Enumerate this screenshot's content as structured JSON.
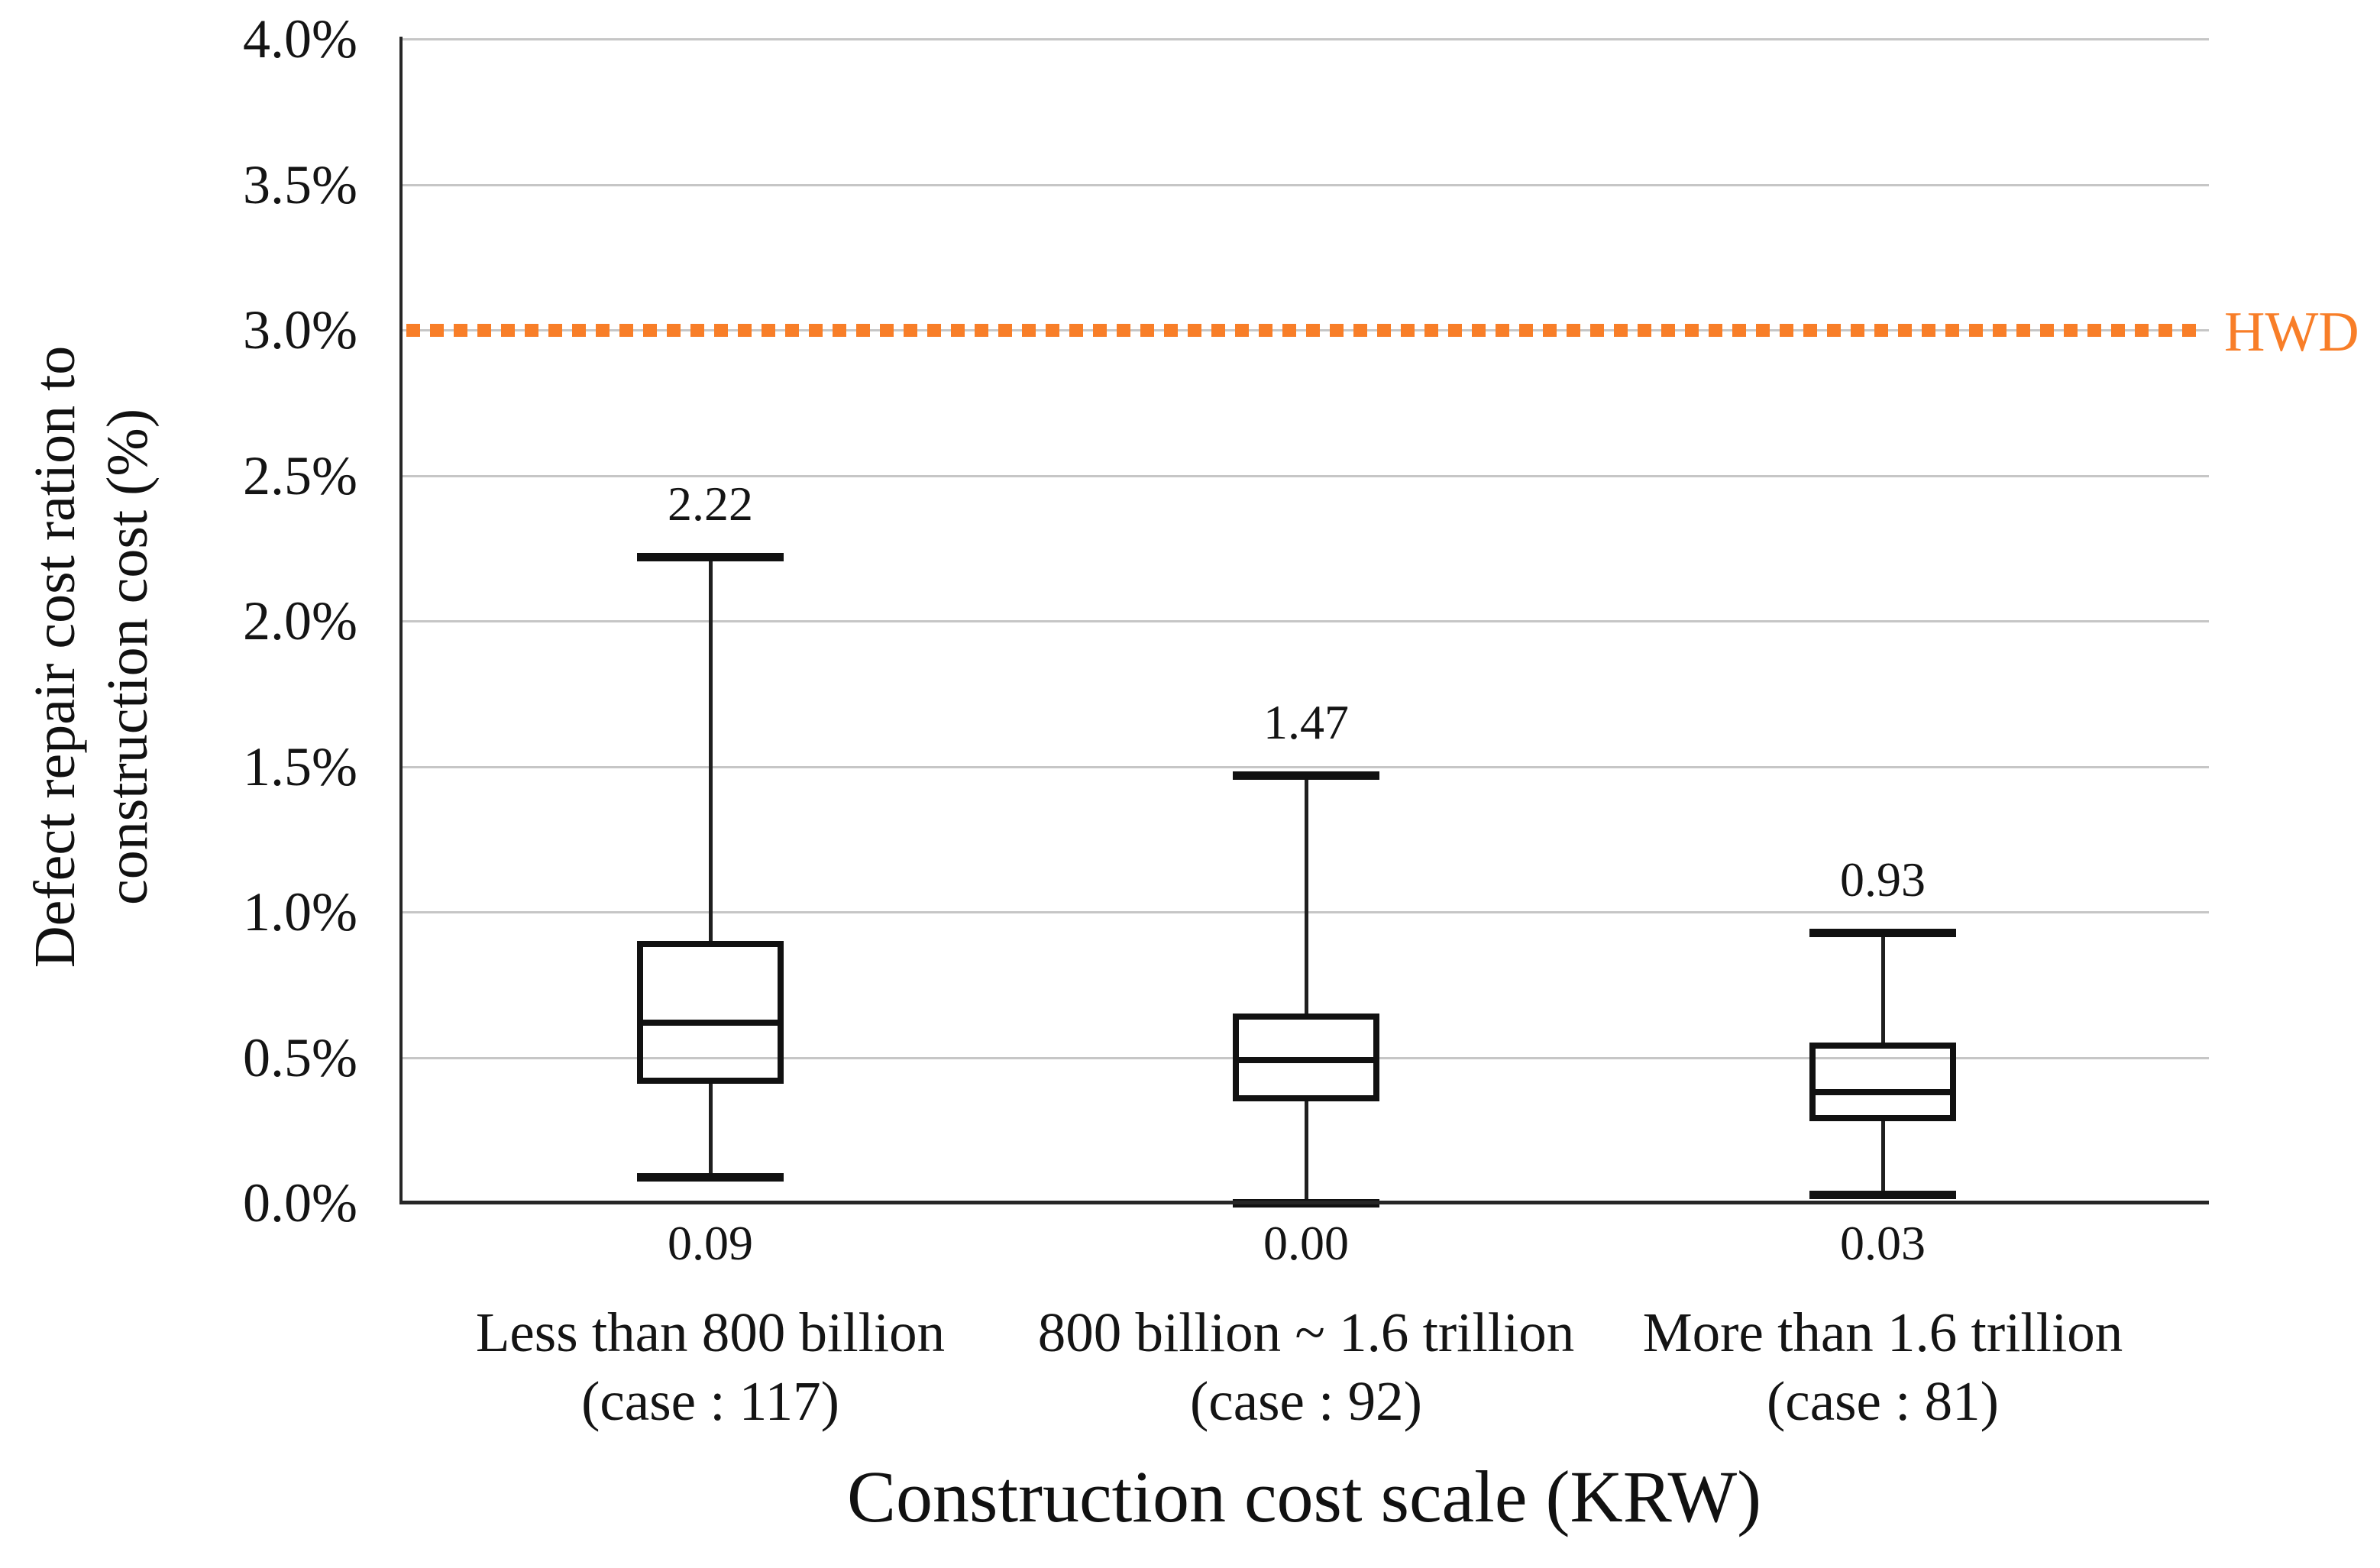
{
  "chart_data": {
    "type": "boxplot",
    "title": "",
    "xlabel": "Construction cost scale (KRW)",
    "ylabel": "Defect repair cost ration to construction cost (%)",
    "ylabel_lines": [
      "Defect repair cost ration to",
      "construction cost (%)"
    ],
    "ylim": [
      0.0,
      4.0
    ],
    "ytick_step": 0.5,
    "grid": "horizontal",
    "legend": "none",
    "yticks": [
      {
        "label": "4.0%",
        "value": 4.0
      },
      {
        "label": "3.5%",
        "value": 3.5
      },
      {
        "label": "3.0%",
        "value": 3.0
      },
      {
        "label": "2.5%",
        "value": 2.5
      },
      {
        "label": "2.0%",
        "value": 2.0
      },
      {
        "label": "1.5%",
        "value": 1.5
      },
      {
        "label": "1.0%",
        "value": 1.0
      },
      {
        "label": "0.5%",
        "value": 0.5
      },
      {
        "label": "0.0%",
        "value": 0.0
      }
    ],
    "threshold": {
      "label": "HWD",
      "value": 3.0,
      "style": "dotted",
      "color": "#F87E28"
    },
    "groups": [
      {
        "category_line1": "Less than 800 billion",
        "category_line2": "(case : 117)",
        "cases": 117,
        "min": 0.09,
        "q1": 0.41,
        "median": 0.62,
        "q3": 0.9,
        "max": 2.22,
        "max_label": "2.22",
        "min_label": "0.09"
      },
      {
        "category_line1": "800 billion ~ 1.6 trillion",
        "category_line2": "(case : 92)",
        "cases": 92,
        "min": 0.0,
        "q1": 0.35,
        "median": 0.49,
        "q3": 0.65,
        "max": 1.47,
        "max_label": "1.47",
        "min_label": "0.00"
      },
      {
        "category_line1": "More than 1.6 trillion",
        "category_line2": "(case : 81)",
        "cases": 81,
        "min": 0.03,
        "q1": 0.28,
        "median": 0.38,
        "q3": 0.55,
        "max": 0.93,
        "max_label": "0.93",
        "min_label": "0.03"
      }
    ],
    "colors": {
      "box_border": "#111111",
      "gridline": "#c6c6c6",
      "axis": "#262626",
      "text": "#141414",
      "threshold": "#F87E28"
    }
  }
}
